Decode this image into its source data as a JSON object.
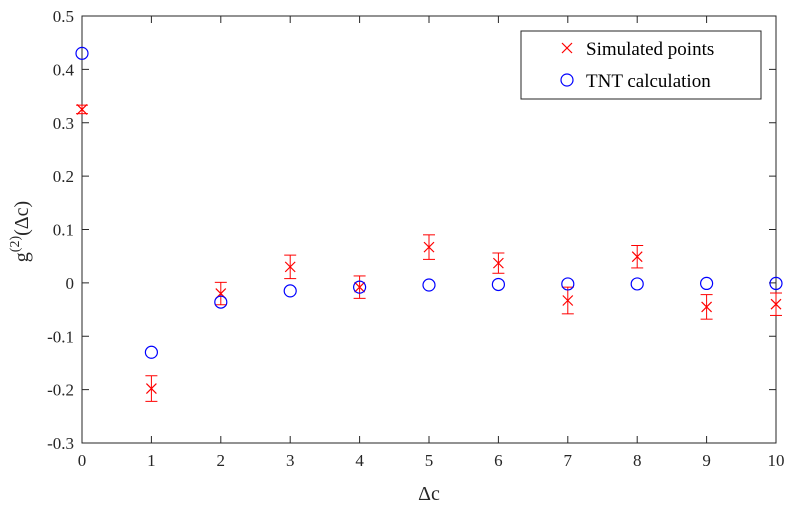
{
  "chart_data": {
    "type": "scatter",
    "title": "",
    "xlabel": "Δc",
    "ylabel_base": "g",
    "ylabel_sup": "(2)",
    "ylabel_arg": "(Δc)",
    "xlim": [
      0,
      10
    ],
    "ylim": [
      -0.3,
      0.5
    ],
    "xticks": [
      0,
      1,
      2,
      3,
      4,
      5,
      6,
      7,
      8,
      9,
      10
    ],
    "yticks": [
      -0.3,
      -0.2,
      -0.1,
      0,
      0.1,
      0.2,
      0.3,
      0.4,
      0.5
    ],
    "ytick_labels": [
      "-0.3",
      "-0.2",
      "-0.1",
      "0",
      "0.1",
      "0.2",
      "0.3",
      "0.4",
      "0.5"
    ],
    "grid": false,
    "legend_position": "top-right",
    "series": [
      {
        "name": "Simulated points",
        "marker": "x",
        "color": "#ff0000",
        "x": [
          0,
          1,
          2,
          3,
          4,
          5,
          6,
          7,
          8,
          9,
          10
        ],
        "y": [
          0.325,
          -0.198,
          -0.02,
          0.03,
          -0.008,
          0.067,
          0.037,
          -0.033,
          0.049,
          -0.045,
          -0.04
        ],
        "err": [
          0.008,
          0.024,
          0.021,
          0.022,
          0.021,
          0.023,
          0.019,
          0.025,
          0.021,
          0.023,
          0.021
        ]
      },
      {
        "name": "TNT calculation",
        "marker": "o",
        "color": "#0000ff",
        "x": [
          0,
          1,
          2,
          3,
          4,
          5,
          6,
          7,
          8,
          9,
          10
        ],
        "y": [
          0.43,
          -0.13,
          -0.036,
          -0.015,
          -0.008,
          -0.004,
          -0.003,
          -0.002,
          -0.002,
          -0.001,
          -0.001
        ]
      }
    ]
  }
}
